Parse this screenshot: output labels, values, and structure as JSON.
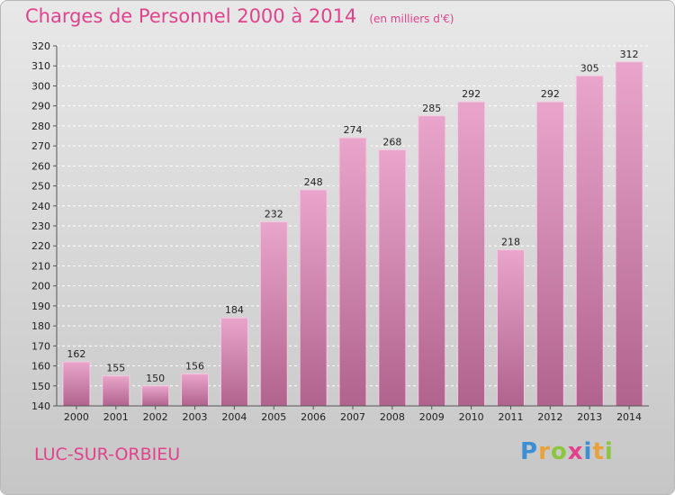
{
  "header": {
    "title": "Charges de Personnel 2000 à 2014",
    "subtitle": "(en milliers d'€)"
  },
  "footer": {
    "city": "LUC-SUR-ORBIEU",
    "logo": "Proxiti"
  },
  "colors": {
    "accent": "#e0438b",
    "bar_top": "#e9a5cb",
    "bar_bottom": "#b0638d",
    "bar_edge": "#f3c9e0"
  },
  "chart_data": {
    "type": "bar",
    "title": "Charges de Personnel 2000 à 2014",
    "subtitle": "(en milliers d'€)",
    "categories": [
      "2000",
      "2001",
      "2002",
      "2003",
      "2004",
      "2005",
      "2006",
      "2007",
      "2008",
      "2009",
      "2010",
      "2011",
      "2012",
      "2013",
      "2014"
    ],
    "values": [
      162,
      155,
      150,
      156,
      184,
      232,
      248,
      274,
      268,
      285,
      292,
      218,
      292,
      305,
      312
    ],
    "ylim": [
      140,
      320
    ],
    "yticks": [
      140,
      150,
      160,
      170,
      180,
      190,
      200,
      210,
      220,
      230,
      240,
      250,
      260,
      270,
      280,
      290,
      300,
      310,
      320
    ],
    "grid": true
  }
}
